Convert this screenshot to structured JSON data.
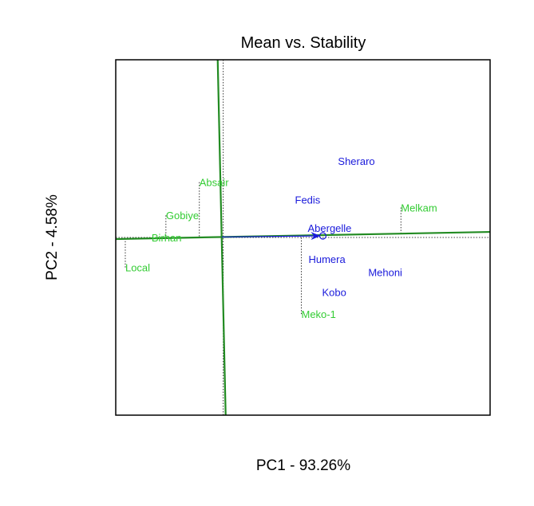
{
  "chart_data": {
    "type": "scatter",
    "title": "Mean vs. Stability",
    "xlabel": "PC1 - 93.26%",
    "ylabel": "PC2 - 4.58%",
    "xlim": [
      -1.35,
      3.35
    ],
    "ylim": [
      -2.25,
      2.25
    ],
    "grid": false,
    "colors": {
      "genotype": "#33cc33",
      "environment": "#1a1adb",
      "axis_line": "#228b22",
      "arrow": "#1a1adb",
      "guide": "#000000"
    },
    "genotypes": [
      {
        "name": "Absair",
        "x": -0.3,
        "y": 0.7
      },
      {
        "name": "Gobiye",
        "x": -0.72,
        "y": 0.28
      },
      {
        "name": "Birhan",
        "x": -0.9,
        "y": 0.0
      },
      {
        "name": "Local",
        "x": -1.23,
        "y": -0.38
      },
      {
        "name": "Meko-1",
        "x": 0.98,
        "y": -0.97
      },
      {
        "name": "Melkam",
        "x": 2.23,
        "y": 0.38
      }
    ],
    "environments": [
      {
        "name": "Sheraro",
        "x": 1.44,
        "y": 0.97
      },
      {
        "name": "Fedis",
        "x": 0.9,
        "y": 0.48
      },
      {
        "name": "Abergelle",
        "x": 1.06,
        "y": 0.12
      },
      {
        "name": "Humera",
        "x": 1.07,
        "y": -0.27
      },
      {
        "name": "Mehoni",
        "x": 1.82,
        "y": -0.44
      },
      {
        "name": "Kobo",
        "x": 1.24,
        "y": -0.69
      }
    ],
    "average_environment": {
      "x": 1.2,
      "y": 0.02
    },
    "aec_abscissa": {
      "x0": -1.35,
      "y0": -0.02,
      "x1": 3.35,
      "y1": 0.07
    },
    "aec_ordinate": {
      "x0": -0.07,
      "y0": 2.25,
      "x1": 0.03,
      "y1": -2.25
    }
  }
}
